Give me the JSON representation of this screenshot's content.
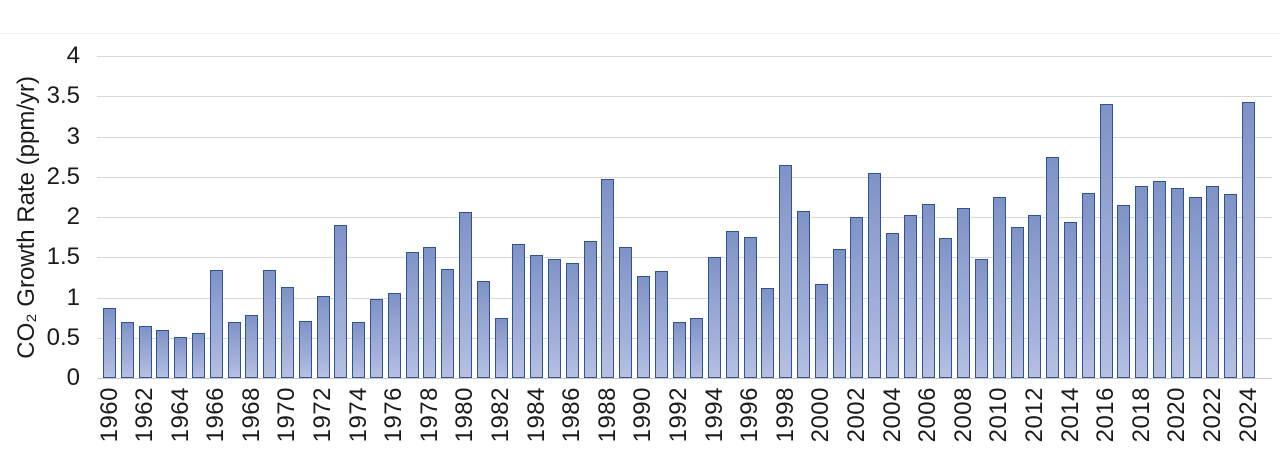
{
  "chart_data": {
    "type": "bar",
    "title": "",
    "xlabel": "",
    "ylabel": "CO₂ Growth Rate (ppm/yr)",
    "ylim": [
      0,
      4
    ],
    "ytick_step": 0.5,
    "ytick_labels": [
      "4",
      "3.5",
      "3",
      "2.5",
      "2",
      "1.5",
      "1",
      "0.5",
      "0"
    ],
    "xtick_every": 2,
    "grid": true,
    "legend": "none",
    "categories": [
      1960,
      1961,
      1962,
      1963,
      1964,
      1965,
      1966,
      1967,
      1968,
      1969,
      1970,
      1971,
      1972,
      1973,
      1974,
      1975,
      1976,
      1977,
      1978,
      1979,
      1980,
      1981,
      1982,
      1983,
      1984,
      1985,
      1986,
      1987,
      1988,
      1989,
      1990,
      1991,
      1992,
      1993,
      1994,
      1995,
      1996,
      1997,
      1998,
      1999,
      2000,
      2001,
      2002,
      2003,
      2004,
      2005,
      2006,
      2007,
      2008,
      2009,
      2010,
      2011,
      2012,
      2013,
      2014,
      2015,
      2016,
      2017,
      2018,
      2019,
      2020,
      2021,
      2022,
      2023,
      2024
    ],
    "values": [
      0.87,
      0.69,
      0.65,
      0.6,
      0.51,
      0.56,
      1.34,
      0.69,
      0.78,
      1.34,
      1.13,
      0.71,
      1.02,
      1.9,
      0.7,
      0.98,
      1.05,
      1.56,
      1.63,
      1.35,
      2.06,
      1.2,
      0.75,
      1.66,
      1.53,
      1.48,
      1.43,
      1.7,
      2.47,
      1.63,
      1.27,
      1.33,
      0.69,
      0.74,
      1.5,
      1.83,
      1.75,
      1.12,
      2.64,
      2.08,
      1.17,
      1.6,
      2.0,
      2.55,
      1.8,
      2.03,
      2.16,
      1.74,
      2.11,
      1.48,
      2.25,
      1.87,
      2.03,
      2.75,
      1.94,
      2.3,
      3.4,
      2.15,
      2.39,
      2.45,
      2.36,
      2.25,
      2.38,
      2.28,
      3.43
    ],
    "colors": {
      "bar_border": "#2f5496",
      "bar_fill_top": "#7f92c6",
      "bar_fill_bottom": "#b6c0e2",
      "gridline": "#d9d9d9",
      "axis_line": "#c9c9c9",
      "text": "#1a1a1a",
      "background": "#ffffff"
    }
  }
}
